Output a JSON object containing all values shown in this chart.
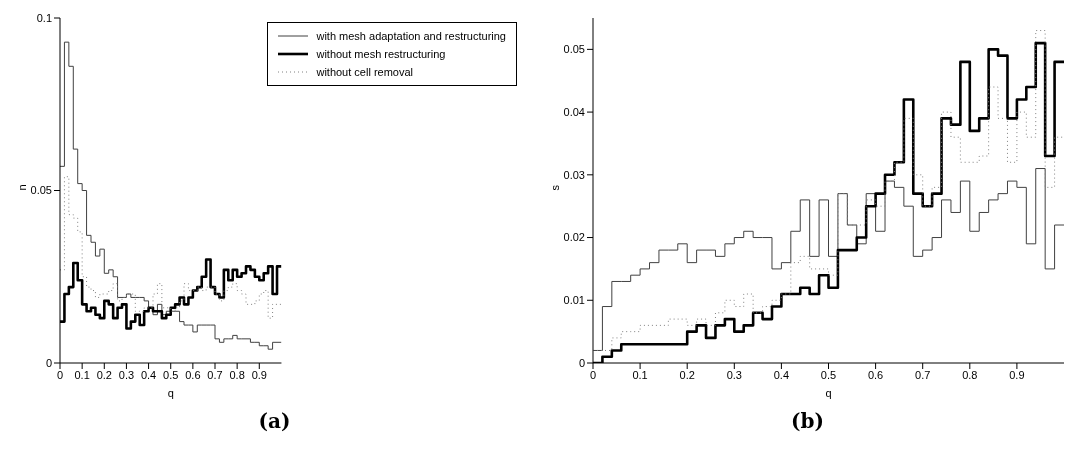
{
  "chart_data": [
    {
      "type": "histogram",
      "title": "(a)",
      "xlabel": "q",
      "ylabel": "n",
      "bins": [
        0,
        0.02,
        0.04,
        0.06,
        0.08,
        0.1,
        0.12,
        0.14,
        0.16,
        0.18,
        0.2,
        0.22,
        0.24,
        0.26,
        0.28,
        0.3,
        0.32,
        0.34,
        0.36,
        0.38,
        0.4,
        0.42,
        0.44,
        0.46,
        0.48,
        0.5,
        0.52,
        0.54,
        0.56,
        0.58,
        0.6,
        0.62,
        0.64,
        0.66,
        0.68,
        0.7,
        0.72,
        0.74,
        0.76,
        0.78,
        0.8,
        0.82,
        0.84,
        0.86,
        0.88,
        0.9,
        0.92,
        0.94,
        0.96,
        0.98,
        1
      ],
      "series": [
        {
          "name": "with mesh adaptation and restructuring",
          "color": "#404040",
          "line_style": "solid",
          "values": [
            0.057,
            0.093,
            0.086,
            0.062,
            0.052,
            0.05,
            0.037,
            0.035,
            0.031,
            0.033,
            0.026,
            0.027,
            0.025,
            0.019,
            0.019,
            0.02,
            0.019,
            0.019,
            0.019,
            0.018,
            0.016,
            0.014,
            0.017,
            0.014,
            0.015,
            0.015,
            0.015,
            0.012,
            0.011,
            0.011,
            0.009,
            0.011,
            0.011,
            0.011,
            0.011,
            0.007,
            0.006,
            0.007,
            0.007,
            0.008,
            0.007,
            0.007,
            0.007,
            0.006,
            0.006,
            0.005,
            0.005,
            0.004,
            0.006,
            0.006
          ]
        },
        {
          "name": "without mesh restructuring",
          "color": "#000000",
          "line_style": "solid",
          "values": [
            0.012,
            0.02,
            0.022,
            0.029,
            0.024,
            0.017,
            0.015,
            0.016,
            0.014,
            0.013,
            0.018,
            0.017,
            0.013,
            0.016,
            0.017,
            0.01,
            0.012,
            0.014,
            0.011,
            0.015,
            0.016,
            0.015,
            0.015,
            0.013,
            0.014,
            0.016,
            0.017,
            0.019,
            0.017,
            0.019,
            0.021,
            0.022,
            0.025,
            0.03,
            0.022,
            0.02,
            0.019,
            0.027,
            0.024,
            0.027,
            0.025,
            0.026,
            0.028,
            0.027,
            0.025,
            0.024,
            0.026,
            0.028,
            0.02,
            0.028
          ]
        },
        {
          "name": "without cell removal",
          "color": "#808080",
          "line_style": "dotted",
          "values": [
            0.027,
            0.054,
            0.043,
            0.042,
            0.038,
            0.025,
            0.022,
            0.021,
            0.019,
            0.02,
            0.02,
            0.021,
            0.023,
            0.018,
            0.019,
            0.02,
            0.02,
            0.015,
            0.015,
            0.016,
            0.016,
            0.02,
            0.023,
            0.016,
            0.016,
            0.015,
            0.016,
            0.018,
            0.023,
            0.021,
            0.021,
            0.022,
            0.021,
            0.022,
            0.022,
            0.02,
            0.018,
            0.021,
            0.022,
            0.023,
            0.021,
            0.02,
            0.017,
            0.017,
            0.018,
            0.02,
            0.021,
            0.013,
            0.017,
            0.017
          ]
        }
      ],
      "xlim": [
        0,
        1
      ],
      "xticks": [
        0,
        0.1,
        0.2,
        0.3,
        0.4,
        0.5,
        0.6,
        0.7,
        0.8,
        0.9
      ],
      "ylim": [
        0,
        0.1
      ],
      "yticks": [
        0,
        0.05,
        0.1
      ],
      "grid": false,
      "legend": "top right"
    },
    {
      "type": "histogram",
      "title": "(b)",
      "xlabel": "q",
      "ylabel": "s",
      "bins": [
        0,
        0.02,
        0.04,
        0.06,
        0.08,
        0.1,
        0.12,
        0.14,
        0.16,
        0.18,
        0.2,
        0.22,
        0.24,
        0.26,
        0.28,
        0.3,
        0.32,
        0.34,
        0.36,
        0.38,
        0.4,
        0.42,
        0.44,
        0.46,
        0.48,
        0.5,
        0.52,
        0.54,
        0.56,
        0.58,
        0.6,
        0.62,
        0.64,
        0.66,
        0.68,
        0.7,
        0.72,
        0.74,
        0.76,
        0.78,
        0.8,
        0.82,
        0.84,
        0.86,
        0.88,
        0.9,
        0.92,
        0.94,
        0.96,
        0.98,
        1
      ],
      "series": [
        {
          "color": "#404040",
          "line_style": "solid",
          "values": [
            0.002,
            0.009,
            0.013,
            0.013,
            0.014,
            0.015,
            0.016,
            0.018,
            0.018,
            0.019,
            0.016,
            0.018,
            0.018,
            0.017,
            0.019,
            0.02,
            0.021,
            0.02,
            0.02,
            0.015,
            0.016,
            0.021,
            0.026,
            0.017,
            0.026,
            0.017,
            0.027,
            0.022,
            0.019,
            0.027,
            0.021,
            0.029,
            0.028,
            0.025,
            0.017,
            0.018,
            0.02,
            0.026,
            0.024,
            0.029,
            0.021,
            0.024,
            0.026,
            0.027,
            0.029,
            0.028,
            0.019,
            0.031,
            0.015,
            0.022
          ]
        },
        {
          "color": "#000000",
          "line_style": "solid",
          "values": [
            0.0,
            0.001,
            0.002,
            0.003,
            0.003,
            0.003,
            0.003,
            0.003,
            0.003,
            0.003,
            0.005,
            0.006,
            0.004,
            0.006,
            0.007,
            0.005,
            0.006,
            0.008,
            0.007,
            0.009,
            0.011,
            0.011,
            0.012,
            0.011,
            0.014,
            0.012,
            0.018,
            0.018,
            0.02,
            0.025,
            0.027,
            0.03,
            0.032,
            0.042,
            0.027,
            0.025,
            0.027,
            0.039,
            0.038,
            0.048,
            0.037,
            0.039,
            0.05,
            0.049,
            0.039,
            0.042,
            0.044,
            0.051,
            0.033,
            0.048
          ]
        },
        {
          "color": "#808080",
          "line_style": "dotted",
          "values": [
            0.002,
            0.002,
            0.004,
            0.005,
            0.005,
            0.006,
            0.006,
            0.006,
            0.007,
            0.007,
            0.006,
            0.007,
            0.006,
            0.008,
            0.01,
            0.009,
            0.011,
            0.008,
            0.009,
            0.01,
            0.011,
            0.016,
            0.017,
            0.015,
            0.015,
            0.014,
            0.027,
            0.022,
            0.022,
            0.026,
            0.025,
            0.029,
            0.032,
            0.039,
            0.03,
            0.025,
            0.028,
            0.04,
            0.036,
            0.032,
            0.032,
            0.033,
            0.044,
            0.039,
            0.032,
            0.04,
            0.036,
            0.053,
            0.028,
            0.036
          ]
        }
      ],
      "xlim": [
        0,
        1
      ],
      "xticks": [
        0,
        0.1,
        0.2,
        0.3,
        0.4,
        0.5,
        0.6,
        0.7,
        0.8,
        0.9
      ],
      "ylim": [
        0,
        0.055
      ],
      "yticks": [
        0,
        0.01,
        0.02,
        0.03,
        0.04,
        0.05
      ],
      "grid": false,
      "legend": false
    }
  ]
}
